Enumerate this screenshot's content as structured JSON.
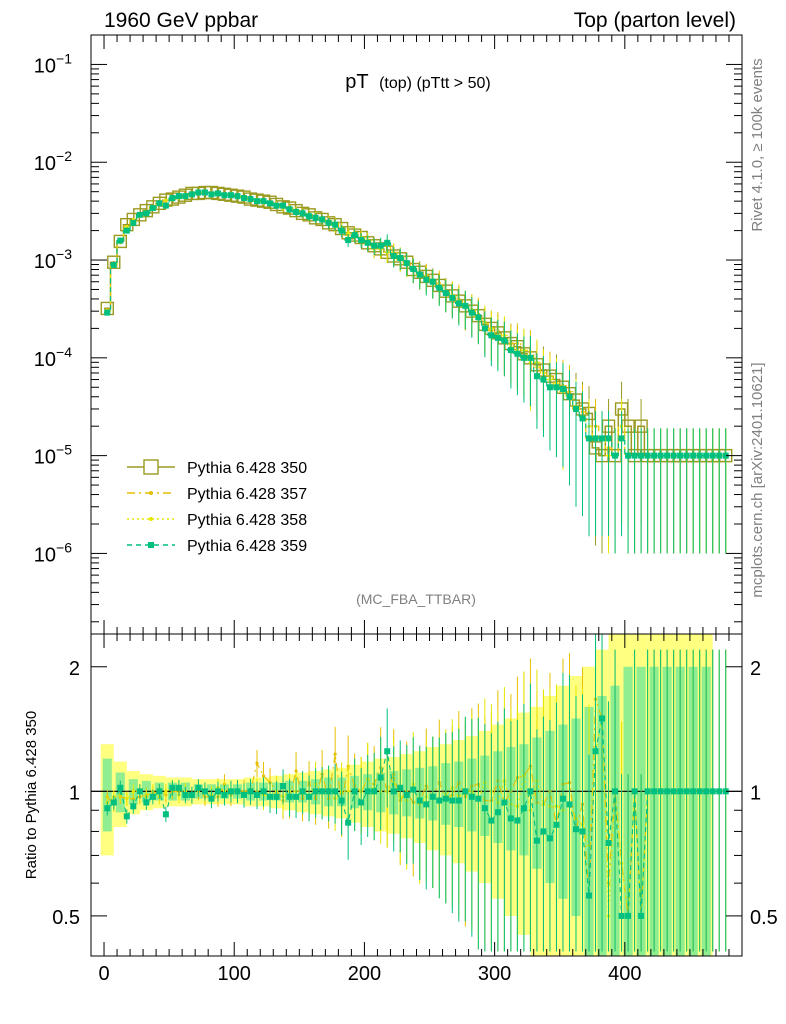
{
  "header": {
    "left_title": "1960 GeV ppbar",
    "right_title": "Top (parton level)"
  },
  "side_labels": {
    "rivet": "Rivet 4.1.0, ≥ 100k events",
    "mcplots": "mcplots.cern.ch [arXiv:2401.10621]"
  },
  "analysis_tag": "(MC_FBA_TTBAR)",
  "colors": {
    "s350": "#9a9a20",
    "s357": "#e6c000",
    "s358": "#e6e600",
    "s359": "#00c080",
    "band_yellow": "#ffff80",
    "band_green": "#90ee90"
  },
  "chart_data": [
    {
      "type": "line",
      "title": "pT (top) (pTtt > 50)",
      "title_main": "pT",
      "title_sub": "(top) (pTtt > 50)",
      "xlabel": "",
      "ylabel": "",
      "yscale": "log",
      "xlim": [
        -10,
        490
      ],
      "ylim": [
        1.5e-07,
        0.2
      ],
      "y_ticks": [
        {
          "value": 0.1,
          "base": "10",
          "exp": "−1"
        },
        {
          "value": 0.01,
          "base": "10",
          "exp": "−2"
        },
        {
          "value": 0.001,
          "base": "10",
          "exp": "−3"
        },
        {
          "value": 0.0001,
          "base": "10",
          "exp": "−4"
        },
        {
          "value": 1e-05,
          "base": "10",
          "exp": "−5"
        },
        {
          "value": 1e-06,
          "base": "10",
          "exp": "−6"
        }
      ],
      "legend_position": "left",
      "x": [
        2.5,
        7.5,
        12.5,
        17.5,
        22.5,
        27.5,
        32.5,
        37.5,
        42.5,
        47.5,
        52.5,
        57.5,
        62.5,
        67.5,
        72.5,
        77.5,
        82.5,
        87.5,
        92.5,
        97.5,
        102.5,
        107.5,
        112.5,
        117.5,
        122.5,
        127.5,
        132.5,
        137.5,
        142.5,
        147.5,
        152.5,
        157.5,
        162.5,
        167.5,
        172.5,
        177.5,
        182.5,
        187.5,
        192.5,
        197.5,
        202.5,
        207.5,
        212.5,
        217.5,
        222.5,
        227.5,
        232.5,
        237.5,
        242.5,
        247.5,
        252.5,
        257.5,
        262.5,
        267.5,
        272.5,
        277.5,
        282.5,
        287.5,
        292.5,
        297.5,
        302.5,
        307.5,
        312.5,
        317.5,
        322.5,
        327.5,
        332.5,
        337.5,
        342.5,
        347.5,
        352.5,
        357.5,
        362.5,
        367.5,
        372.5,
        377.5,
        382.5,
        387.5,
        392.5,
        397.5,
        402.5,
        407.5,
        412.5,
        417.5,
        422.5,
        427.5,
        432.5,
        437.5,
        442.5,
        447.5,
        452.5,
        457.5,
        462.5,
        467.5,
        472.5,
        477.5
      ],
      "series": [
        {
          "name": "Pythia 6.428 350",
          "values": [
            0.00032,
            0.00095,
            0.00155,
            0.0023,
            0.0026,
            0.0029,
            0.0032,
            0.0035,
            0.0038,
            0.0041,
            0.0042,
            0.0044,
            0.0046,
            0.0048,
            0.0048,
            0.0049,
            0.0049,
            0.0048,
            0.0047,
            0.0046,
            0.0045,
            0.0044,
            0.0042,
            0.0041,
            0.004,
            0.0039,
            0.0037,
            0.0035,
            0.0034,
            0.0032,
            0.003,
            0.0029,
            0.0027,
            0.0026,
            0.0024,
            0.0023,
            0.0021,
            0.0019,
            0.0018,
            0.0017,
            0.0015,
            0.0014,
            0.0013,
            0.0012,
            0.0011,
            0.00103,
            0.00095,
            0.0008,
            0.00075,
            0.00068,
            0.00062,
            0.00055,
            0.00048,
            0.00043,
            0.00038,
            0.00034,
            0.0003,
            0.00027,
            0.00022,
            0.0002,
            0.00018,
            0.00016,
            0.00014,
            0.00013,
            0.00011,
            0.0001,
            8.5e-05,
            7.5e-05,
            6.5e-05,
            6e-05,
            5e-05,
            4.3e-05,
            3.7e-05,
            3e-05,
            2.7e-05,
            1.2e-05,
            1e-05,
            2e-05,
            1e-05,
            3e-05,
            2e-05,
            1e-05,
            2e-05,
            1e-05,
            1e-05,
            1e-05,
            1e-05,
            1e-05,
            1e-05,
            1e-05,
            1e-05,
            1e-05,
            1e-05,
            1e-05,
            1e-05,
            1e-05
          ]
        },
        {
          "name": "Pythia 6.428 357",
          "values": [
            0.00031,
            0.00088,
            0.0015,
            0.0022,
            0.0025,
            0.0028,
            0.0031,
            0.0034,
            0.0037,
            0.004,
            0.0042,
            0.0044,
            0.0045,
            0.0047,
            0.0048,
            0.0049,
            0.0049,
            0.0048,
            0.0046,
            0.0045,
            0.0045,
            0.0044,
            0.0042,
            0.004,
            0.004,
            0.0038,
            0.0036,
            0.0035,
            0.0033,
            0.0032,
            0.0031,
            0.0029,
            0.0027,
            0.0026,
            0.0025,
            0.0024,
            0.0021,
            0.0018,
            0.0019,
            0.0017,
            0.0015,
            0.0013,
            0.0013,
            0.0014,
            0.0012,
            0.00108,
            0.00094,
            0.00082,
            0.00072,
            0.0007,
            0.0006,
            0.00058,
            0.00046,
            0.00042,
            0.0004,
            0.00033,
            0.00031,
            0.00028,
            0.00021,
            0.00019,
            0.00019,
            0.00015,
            0.00014,
            0.00014,
            0.00012,
            0.000115,
            8e-05,
            7e-05,
            6.5e-05,
            5e-05,
            5.2e-05,
            4.5e-05,
            3e-05,
            2.8e-05,
            1.5e-05,
            2e-05,
            1.5e-05,
            1.2e-05,
            1e-05,
            2e-05,
            1e-05,
            1e-05,
            1e-05,
            1e-05,
            1e-05,
            1e-05,
            1e-05,
            1e-05,
            1e-05,
            1e-05,
            1e-05,
            1e-05,
            1e-05,
            1e-05,
            1e-05,
            1e-05
          ]
        },
        {
          "name": "Pythia 6.428 358",
          "values": [
            0.0003,
            0.00092,
            0.00152,
            0.0022,
            0.0026,
            0.0029,
            0.0031,
            0.0035,
            0.0037,
            0.0041,
            0.0043,
            0.0043,
            0.0046,
            0.0047,
            0.0049,
            0.0049,
            0.0048,
            0.0049,
            0.0047,
            0.0046,
            0.0045,
            0.0043,
            0.0042,
            0.0041,
            0.0039,
            0.0038,
            0.0037,
            0.0034,
            0.0034,
            0.0032,
            0.003,
            0.0028,
            0.0028,
            0.0026,
            0.0024,
            0.0022,
            0.0021,
            0.0019,
            0.0018,
            0.0017,
            0.0016,
            0.0014,
            0.0013,
            0.0012,
            0.00115,
            0.001,
            0.0009,
            0.00083,
            0.0007,
            0.00066,
            0.0006,
            0.00052,
            0.00047,
            0.00044,
            0.00037,
            0.00034,
            0.0003,
            0.00026,
            0.00023,
            0.0002,
            0.00017,
            0.00017,
            0.00013,
            0.00012,
            0.00012,
            9e-05,
            9e-05,
            7e-05,
            6e-05,
            5.5e-05,
            4.5e-05,
            4e-05,
            3.2e-05,
            2.5e-05,
            2e-05,
            1.5e-05,
            1.5e-05,
            1e-05,
            1e-05,
            2e-05,
            1e-05,
            1e-05,
            1e-05,
            1e-05,
            1e-05,
            1e-05,
            1e-05,
            1e-05,
            1e-05,
            1e-05,
            1e-05,
            1e-05,
            1e-05,
            1e-05,
            1e-05,
            1e-05
          ]
        },
        {
          "name": "Pythia 6.428 359",
          "values": [
            0.00029,
            0.00089,
            0.00158,
            0.002,
            0.0024,
            0.0029,
            0.003,
            0.0034,
            0.0038,
            0.0036,
            0.0043,
            0.0045,
            0.0045,
            0.0047,
            0.0049,
            0.0049,
            0.0047,
            0.0048,
            0.0046,
            0.0046,
            0.0045,
            0.0043,
            0.0042,
            0.004,
            0.004,
            0.0038,
            0.0036,
            0.0036,
            0.0033,
            0.0031,
            0.003,
            0.0028,
            0.0027,
            0.0026,
            0.0024,
            0.0023,
            0.002,
            0.0016,
            0.0018,
            0.0016,
            0.0015,
            0.0014,
            0.0014,
            0.0015,
            0.0011,
            0.00105,
            0.00093,
            0.00081,
            0.00071,
            0.00063,
            0.0006,
            0.00052,
            0.00046,
            0.00041,
            0.00036,
            0.00034,
            0.00029,
            0.00026,
            0.0002,
            0.00017,
            0.00016,
            0.00015,
            0.00012,
            0.00011,
            0.0001,
            0.0001,
            6.5e-05,
            6e-05,
            5e-05,
            5e-05,
            4.8e-05,
            4e-05,
            3e-05,
            2.4e-05,
            1.5e-05,
            1.5e-05,
            1.5e-05,
            1.5e-05,
            1e-05,
            1.5e-05,
            1e-05,
            1e-05,
            1e-05,
            1e-05,
            1e-05,
            1e-05,
            1e-05,
            1e-05,
            1e-05,
            1e-05,
            1e-05,
            1e-05,
            1e-05,
            1e-05,
            1e-05,
            1e-05
          ]
        }
      ]
    },
    {
      "type": "line",
      "title": "",
      "xlabel": "",
      "ylabel": "Ratio to Pythia 6.428 350",
      "yscale": "log",
      "xlim": [
        -10,
        490
      ],
      "ylim": [
        0.4,
        2.4
      ],
      "x_ticks": [
        0,
        100,
        200,
        300,
        400
      ],
      "y_ticks": [
        0.5,
        1,
        2
      ],
      "reference_line": 1,
      "bands": {
        "x": [
          2.5,
          12.5,
          22.5,
          32.5,
          42.5,
          52.5,
          62.5,
          72.5,
          82.5,
          92.5,
          102.5,
          112.5,
          122.5,
          132.5,
          142.5,
          152.5,
          162.5,
          172.5,
          182.5,
          192.5,
          202.5,
          212.5,
          222.5,
          232.5,
          242.5,
          252.5,
          262.5,
          272.5,
          282.5,
          292.5,
          302.5,
          312.5,
          322.5,
          332.5,
          342.5,
          352.5,
          362.5,
          372.5,
          382.5,
          392.5,
          402.5,
          412.5,
          422.5,
          432.5,
          442.5,
          452.5,
          462.5
        ],
        "yellow_rel": [
          0.3,
          0.18,
          0.12,
          0.1,
          0.09,
          0.08,
          0.08,
          0.07,
          0.07,
          0.07,
          0.07,
          0.08,
          0.08,
          0.09,
          0.1,
          0.11,
          0.12,
          0.13,
          0.14,
          0.16,
          0.18,
          0.2,
          0.21,
          0.23,
          0.25,
          0.28,
          0.3,
          0.33,
          0.36,
          0.4,
          0.45,
          0.5,
          0.55,
          0.6,
          0.7,
          0.8,
          0.9,
          1.0,
          1.2,
          1.5,
          1.8,
          2.0,
          2.0,
          2.0,
          2.0,
          2.0,
          2.0
        ],
        "green_rel": [
          0.2,
          0.11,
          0.07,
          0.06,
          0.05,
          0.05,
          0.05,
          0.04,
          0.04,
          0.04,
          0.04,
          0.05,
          0.05,
          0.05,
          0.06,
          0.06,
          0.07,
          0.08,
          0.08,
          0.09,
          0.1,
          0.11,
          0.12,
          0.13,
          0.14,
          0.15,
          0.17,
          0.18,
          0.2,
          0.22,
          0.25,
          0.28,
          0.3,
          0.35,
          0.4,
          0.45,
          0.5,
          0.6,
          0.7,
          0.8,
          1.0,
          1.0,
          1.0,
          1.0,
          1.0,
          1.0,
          1.0
        ]
      },
      "series": [
        {
          "name": "Pythia 6.428 357",
          "values": [
            0.97,
            0.93,
            0.97,
            0.96,
            0.96,
            0.97,
            0.98,
            0.99,
            1.0,
            0.98,
            1.0,
            1.0,
            1.0,
            0.98,
            1.0,
            0.97,
            0.97,
            0.97,
            1.04,
            0.98,
            1.0,
            1.0,
            1.0,
            1.17,
            1.09,
            1.05,
            1.0,
            0.95,
            0.96,
            1.12,
            0.96,
            1.05,
            0.96,
            1.1,
            0.96,
            1.23,
            0.94,
            1.15,
            1.03,
            1.0,
            1.07,
            1.04,
            1.14,
            1.0,
            1.1,
            0.95,
            1.0,
            0.94,
            0.95,
            1.03,
            0.97,
            1.05,
            0.96,
            0.98,
            1.05,
            0.97,
            1.03,
            1.04,
            0.95,
            0.95,
            1.06,
            0.94,
            1.0,
            1.08,
            1.09,
            1.15,
            0.94,
            0.93,
            1.0,
            0.83,
            1.04,
            1.05,
            0.81,
            0.93,
            0.56,
            1.67,
            1.5,
            0.6,
            1.0,
            0.67,
            0.5,
            1.0,
            0.5,
            1.0,
            1.0,
            1.0,
            1.0,
            1.0,
            1.0,
            1.0,
            1.0,
            1.0,
            1.0,
            1.0,
            1.0,
            1.0
          ]
        },
        {
          "name": "Pythia 6.428 358",
          "values": [
            0.94,
            0.97,
            0.98,
            0.96,
            1.0,
            1.0,
            0.97,
            1.0,
            0.97,
            1.0,
            1.02,
            0.98,
            1.0,
            0.98,
            1.02,
            1.0,
            0.98,
            1.02,
            1.0,
            1.0,
            1.0,
            0.98,
            1.0,
            1.0,
            0.98,
            0.97,
            1.0,
            0.97,
            1.0,
            1.0,
            1.0,
            0.97,
            1.04,
            1.0,
            1.0,
            0.96,
            1.0,
            1.0,
            1.0,
            1.0,
            1.07,
            1.0,
            1.0,
            1.0,
            1.05,
            0.97,
            0.95,
            1.04,
            0.93,
            0.97,
            0.97,
            0.95,
            0.98,
            1.02,
            0.97,
            1.0,
            1.0,
            0.96,
            1.05,
            1.0,
            0.94,
            1.06,
            0.93,
            0.92,
            1.09,
            0.9,
            1.06,
            0.93,
            0.92,
            0.92,
            0.9,
            0.93,
            0.86,
            0.83,
            0.74,
            1.25,
            1.5,
            0.5,
            1.0,
            0.67,
            0.5,
            1.0,
            0.5,
            1.0,
            1.0,
            1.0,
            1.0,
            1.0,
            1.0,
            1.0,
            1.0,
            1.0,
            1.0,
            1.0,
            1.0,
            1.0
          ]
        },
        {
          "name": "Pythia 6.428 359",
          "values": [
            0.91,
            0.94,
            1.02,
            0.87,
            0.92,
            1.0,
            0.94,
            0.97,
            1.0,
            0.88,
            1.02,
            1.02,
            0.98,
            0.98,
            1.02,
            1.0,
            0.96,
            1.0,
            0.98,
            1.0,
            1.0,
            0.98,
            1.0,
            0.98,
            1.0,
            0.97,
            0.97,
            1.03,
            0.97,
            0.97,
            1.0,
            0.97,
            1.0,
            1.0,
            1.0,
            1.0,
            0.95,
            0.84,
            1.0,
            0.94,
            1.0,
            1.0,
            1.08,
            1.25,
            1.0,
            1.02,
            0.98,
            1.01,
            0.95,
            0.93,
            0.97,
            0.95,
            0.96,
            0.95,
            0.95,
            1.0,
            0.97,
            0.96,
            0.91,
            0.85,
            0.89,
            0.94,
            0.86,
            0.85,
            0.91,
            1.0,
            0.76,
            0.8,
            0.77,
            0.83,
            0.96,
            0.93,
            0.81,
            0.8,
            0.56,
            1.25,
            1.5,
            0.75,
            1.0,
            0.5,
            0.5,
            1.0,
            0.5,
            1.0,
            1.0,
            1.0,
            1.0,
            1.0,
            1.0,
            1.0,
            1.0,
            1.0,
            1.0,
            1.0,
            1.0,
            1.0
          ]
        }
      ]
    }
  ]
}
